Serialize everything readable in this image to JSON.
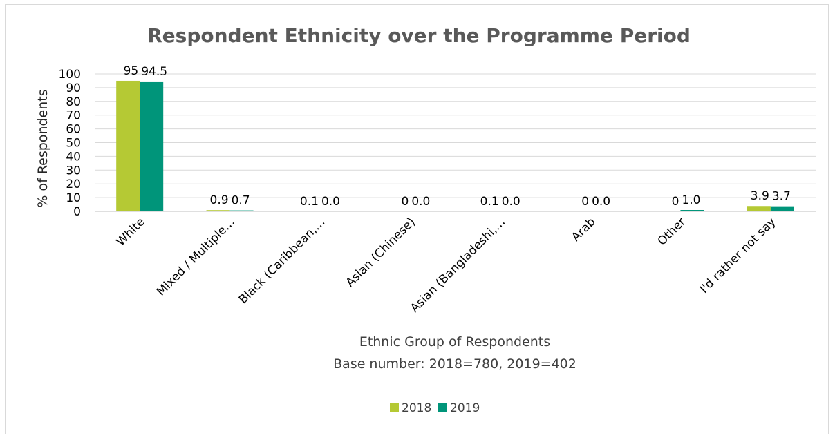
{
  "chart_data": {
    "type": "bar",
    "title": "Respondent Ethnicity over the Programme Period",
    "ylabel": "% of Respondents",
    "xlabel": "Ethnic Group of Respondents",
    "subtitle": "Base number: 2018=780, 2019=402",
    "ylim": [
      0,
      100
    ],
    "yticks": [
      "0",
      "10",
      "20",
      "30",
      "40",
      "50",
      "60",
      "70",
      "80",
      "90",
      "100"
    ],
    "grid": true,
    "legend_position": "bottom",
    "categories": [
      "White",
      "Mixed / Multiple…",
      "Black (Caribbean,…",
      "Asian (Chinese)",
      "Asian (Bangladeshi,…",
      "Arab",
      "Other",
      "I'd rather not say"
    ],
    "series": [
      {
        "name": "2018",
        "color": "#b5c934",
        "values": [
          95,
          0.9,
          0.1,
          0,
          0.1,
          0,
          0,
          3.9
        ],
        "labels": [
          "95",
          "0.9",
          "0.1",
          "0",
          "0.1",
          "0",
          "0",
          "3.9"
        ]
      },
      {
        "name": "2019",
        "color": "#00957a",
        "values": [
          94.5,
          0.7,
          0.0,
          0.0,
          0.0,
          0.0,
          1.0,
          3.7
        ],
        "labels": [
          "94.5",
          "0.7",
          "0.0",
          "0.0",
          "0.0",
          "0.0",
          "1.0",
          "3.7"
        ]
      }
    ]
  }
}
